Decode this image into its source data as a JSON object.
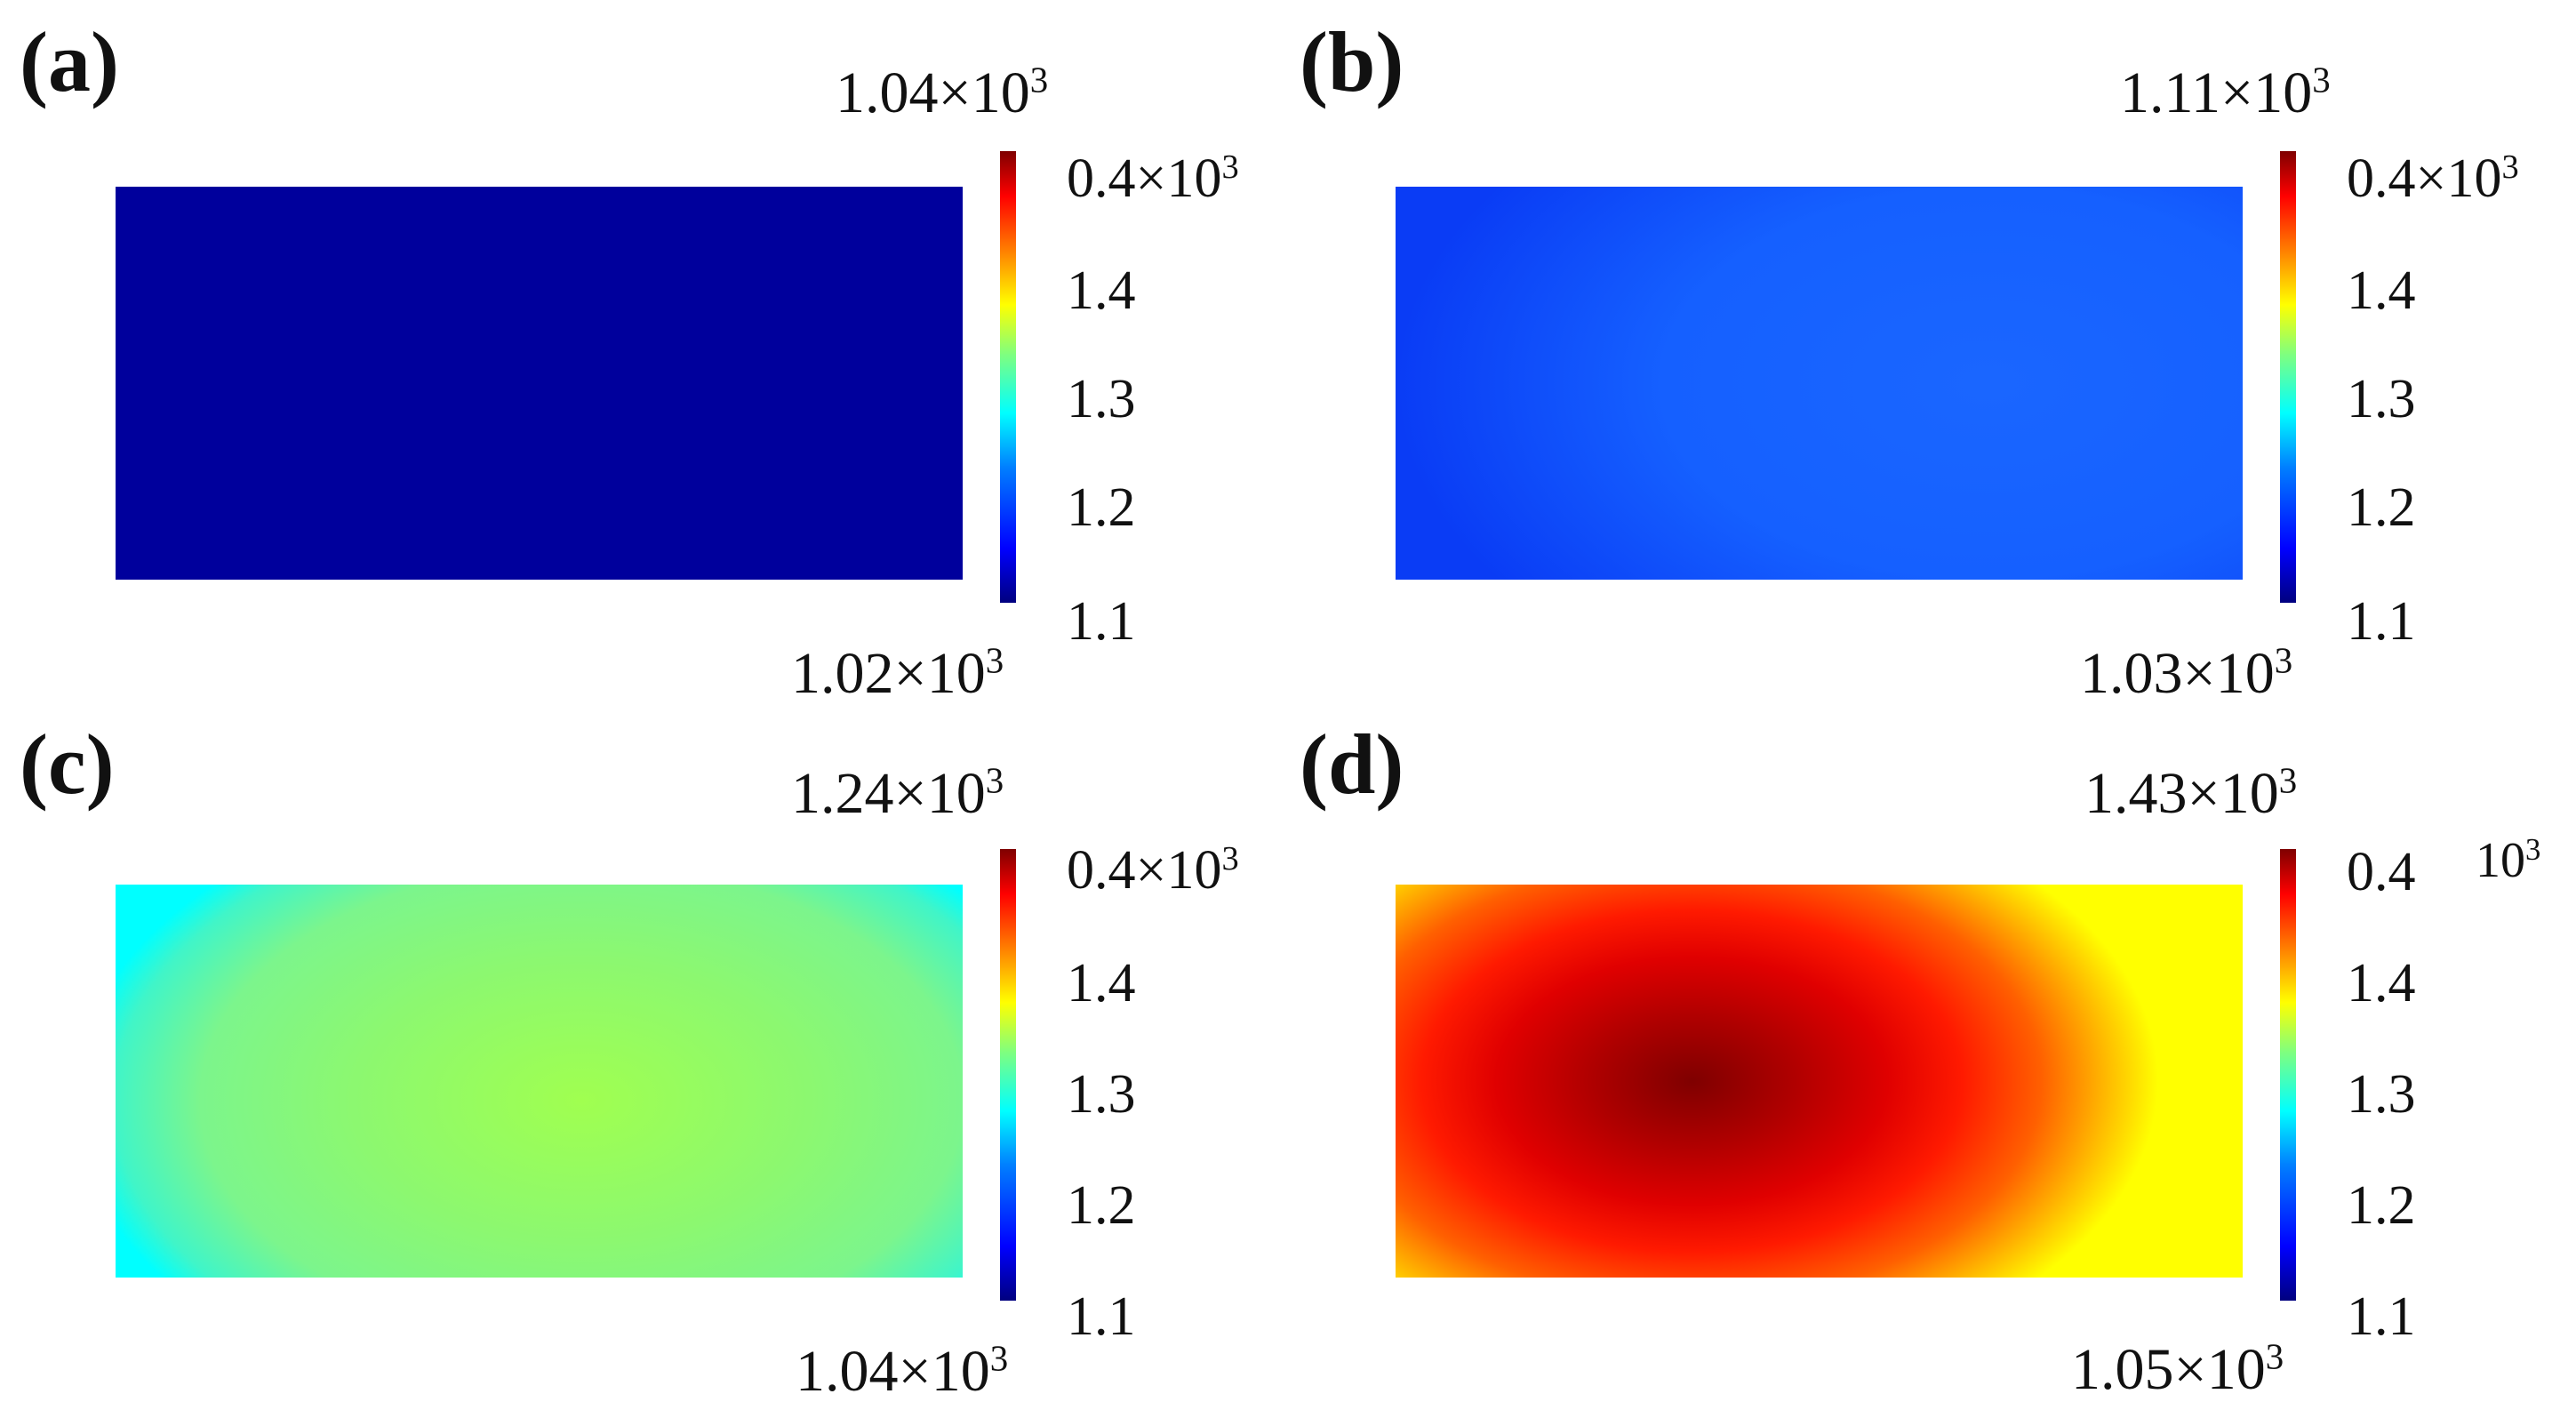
{
  "chart_data": [
    {
      "type": "heatmap",
      "panel_label": "(a)",
      "max_value": "1.04×10",
      "min_value": "1.02×10",
      "colorbar_ticks": [
        "0.4×10",
        "1.4",
        "1.3",
        "1.2",
        "1.1"
      ],
      "field_colors": [
        "#00009c",
        "#00009c",
        "#00009c"
      ]
    },
    {
      "type": "heatmap",
      "panel_label": "(b)",
      "max_value": "1.11×10",
      "min_value": "1.03×10",
      "colorbar_ticks": [
        "0.4×10",
        "1.4",
        "1.3",
        "1.2",
        "1.1"
      ],
      "field_colors": [
        "#0a3cf5",
        "#1560ff",
        "#1a66ff"
      ]
    },
    {
      "type": "heatmap",
      "panel_label": "(c)",
      "max_value": "1.24×10",
      "min_value": "1.04×10",
      "colorbar_ticks": [
        "0.4×10",
        "1.4",
        "1.3",
        "1.2",
        "1.1"
      ],
      "field_colors": [
        "#00ffff",
        "#a0ff50",
        "#7cf58c"
      ]
    },
    {
      "type": "heatmap",
      "panel_label": "(d)",
      "max_value": "1.43×10",
      "min_value": "1.05×10",
      "colorbar_ticks": [
        "0.4",
        "1.4",
        "1.3",
        "1.2",
        "1.1"
      ],
      "colorbar_unit": "10",
      "field_colors": [
        "#ffff00",
        "#7f0000",
        "#ffc000"
      ]
    }
  ],
  "exponent": "3"
}
